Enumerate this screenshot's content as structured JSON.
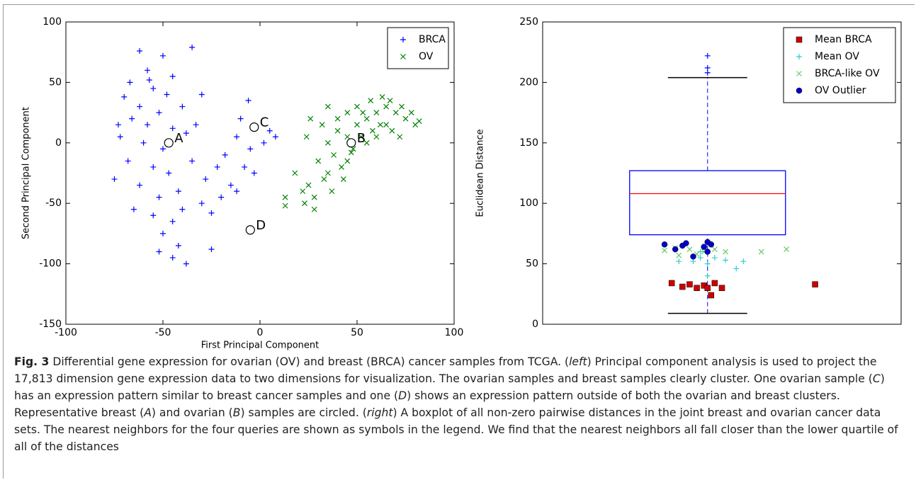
{
  "chart_data": [
    {
      "type": "scatter",
      "xlabel": "First Principal Component",
      "ylabel": "Second Principal Component",
      "xlim": [
        -100,
        100
      ],
      "ylim": [
        -150,
        100
      ],
      "xticks": [
        -100,
        -50,
        0,
        50,
        100
      ],
      "yticks": [
        -150,
        -100,
        -50,
        0,
        50,
        100
      ],
      "legend": "upper right",
      "series": [
        {
          "name": "BRCA",
          "color": "#0000ff",
          "marker": "+",
          "x": [
            -62,
            -50,
            -35,
            -58,
            -45,
            -70,
            -55,
            -48,
            -62,
            -52,
            -40,
            -66,
            -58,
            -45,
            -72,
            -60,
            -50,
            -38,
            -68,
            -55,
            -47,
            -62,
            -52,
            -42,
            -65,
            -55,
            -45,
            -40,
            -50,
            -42,
            -52,
            -38,
            -45,
            -30,
            -25,
            -33,
            -30,
            -18,
            -12,
            -8,
            -15,
            -20,
            -10,
            -5,
            2,
            5,
            -3,
            -22,
            -28,
            -75,
            -73,
            -67,
            -57,
            -25,
            8,
            -6,
            -12,
            -35
          ],
          "values": [
            76,
            72,
            79,
            60,
            55,
            38,
            45,
            40,
            30,
            25,
            30,
            20,
            15,
            12,
            5,
            0,
            -5,
            8,
            -15,
            -20,
            -25,
            -35,
            -45,
            -40,
            -55,
            -60,
            -65,
            -55,
            -75,
            -85,
            -90,
            -100,
            -95,
            -50,
            -58,
            15,
            40,
            -10,
            5,
            -20,
            -35,
            -45,
            20,
            -5,
            0,
            10,
            -25,
            -20,
            -30,
            -30,
            15,
            50,
            52,
            -88,
            5,
            35,
            -40,
            -15
          ]
        },
        {
          "name": "OV",
          "color": "#008000",
          "marker": "x",
          "x": [
            25,
            30,
            35,
            40,
            45,
            50,
            55,
            60,
            65,
            70,
            75,
            80,
            38,
            42,
            48,
            52,
            58,
            62,
            68,
            72,
            33,
            28,
            22,
            18,
            13,
            13,
            23,
            28,
            35,
            45,
            55,
            60,
            65,
            50,
            45,
            40,
            32,
            35,
            26,
            24,
            57,
            63,
            67,
            53,
            47,
            43,
            37,
            73,
            78,
            82
          ],
          "values": [
            -35,
            -15,
            0,
            10,
            5,
            15,
            20,
            25,
            30,
            25,
            20,
            15,
            -10,
            -20,
            -5,
            5,
            10,
            15,
            10,
            5,
            -30,
            -45,
            -40,
            -25,
            -45,
            -52,
            -50,
            -55,
            -25,
            -15,
            0,
            5,
            15,
            30,
            25,
            20,
            15,
            30,
            20,
            5,
            35,
            38,
            35,
            25,
            -8,
            -30,
            -40,
            30,
            25,
            18
          ]
        }
      ],
      "annotations": [
        {
          "label": "A",
          "x": -47,
          "y": 0
        },
        {
          "label": "B",
          "x": 47,
          "y": 0
        },
        {
          "label": "C",
          "x": -3,
          "y": 13
        },
        {
          "label": "D",
          "x": -5,
          "y": -72
        }
      ]
    },
    {
      "type": "box",
      "ylabel": "Euclidean Distance",
      "xlim": [
        0.54,
        1.54
      ],
      "ylim": [
        0,
        250
      ],
      "yticks": [
        0,
        50,
        100,
        150,
        200,
        250
      ],
      "legend": "upper right",
      "box": {
        "position": 1,
        "whislo": 9,
        "q1": 74,
        "med": 108,
        "q3": 127,
        "whishi": 204,
        "fliers": [
          208,
          212,
          222
        ],
        "color": "#0000ff",
        "median_color": "#ff0000",
        "cap_color": "#000000"
      },
      "series": [
        {
          "name": "Mean BRCA",
          "color": "#cc0000",
          "marker": "s",
          "x": [
            0.9,
            0.93,
            0.95,
            0.97,
            0.99,
            1.0,
            1.02,
            1.04,
            1.01,
            1.3
          ],
          "values": [
            34,
            31,
            33,
            30,
            32,
            30,
            34,
            30,
            24,
            33
          ]
        },
        {
          "name": "Mean OV",
          "color": "#33cccc",
          "marker": "+",
          "x": [
            0.92,
            0.96,
            0.98,
            1.0,
            1.02,
            1.05,
            1.1,
            1.08,
            1.0,
            0.98
          ],
          "values": [
            52,
            52,
            55,
            50,
            55,
            53,
            52,
            46,
            40,
            60
          ]
        },
        {
          "name": "BRCA-like OV",
          "color": "#66cc66",
          "marker": "x",
          "x": [
            0.88,
            0.92,
            0.95,
            0.97,
            0.99,
            1.02,
            1.05,
            1.15,
            1.22,
            0.91
          ],
          "values": [
            61,
            57,
            62,
            58,
            60,
            62,
            60,
            60,
            62,
            63
          ]
        },
        {
          "name": "OV Outlier",
          "color": "#0000cc",
          "marker": "o",
          "x": [
            0.88,
            0.91,
            0.93,
            0.94,
            0.96,
            1.0,
            1.01,
            1.0,
            0.99
          ],
          "values": [
            66,
            62,
            65,
            67,
            56,
            68,
            66,
            60,
            64
          ]
        }
      ]
    }
  ],
  "caption": {
    "label": "Fig. 3",
    "segments": [
      " Differential gene expression for ovarian (OV) and breast (BRCA) cancer samples from TCGA. (",
      "left",
      ") Principal component analysis is used to project the 17,813 dimension gene expression data to two dimensions for visualization. The ovarian samples and breast samples clearly cluster. One ovarian sample (",
      "C",
      ") has an expression pattern similar to breast cancer samples and one (",
      "D",
      ") shows an expression pattern outside of both the ovarian and breast clusters. Representative breast (",
      "A",
      ") and ovarian (",
      "B",
      ") samples are circled. (",
      "right",
      ") A boxplot of all non-zero pairwise distances in the joint breast and ovarian cancer data sets. The nearest neighbors for the four queries are shown as symbols in the legend. We find that the nearest neighbors all fall closer than the lower quartile of all of the distances"
    ]
  }
}
